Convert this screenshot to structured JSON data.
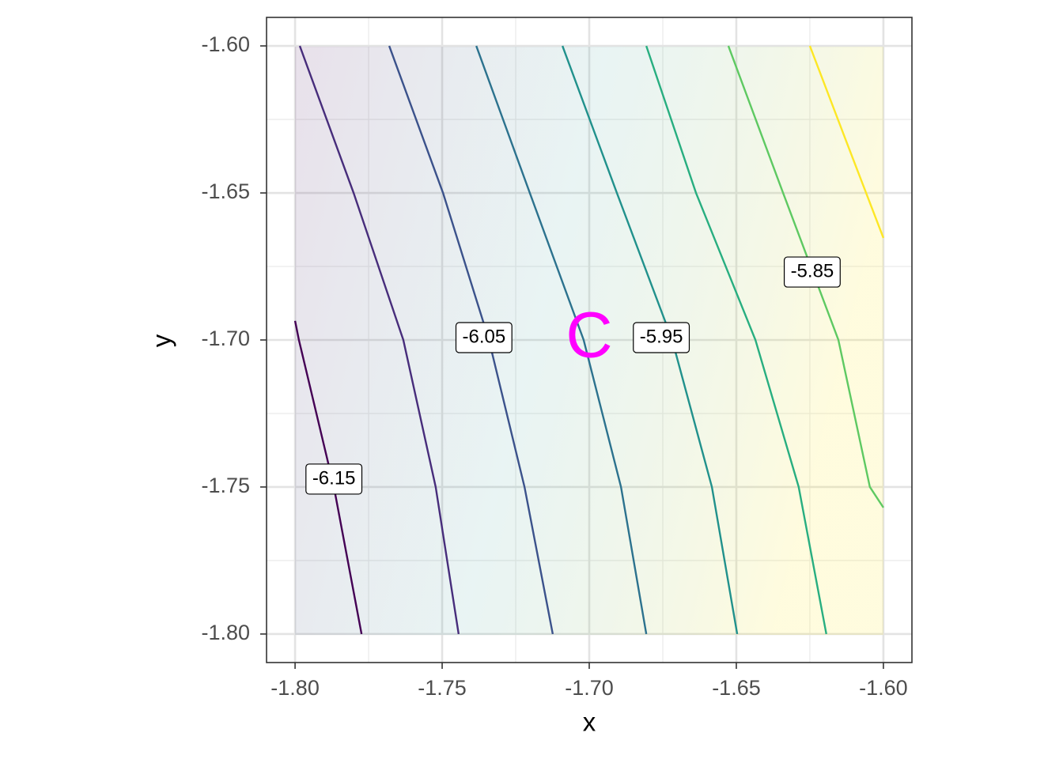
{
  "chart_data": {
    "type": "contour",
    "x_label": "x",
    "y_label": "y",
    "xlim": [
      -1.8097,
      -1.5903
    ],
    "ylim": [
      -1.8097,
      -1.5903
    ],
    "xticks": [
      {
        "value": -1.8,
        "label": "-1.80"
      },
      {
        "value": -1.75,
        "label": "-1.75"
      },
      {
        "value": -1.7,
        "label": "-1.70"
      },
      {
        "value": -1.65,
        "label": "-1.65"
      },
      {
        "value": -1.6,
        "label": "-1.60"
      }
    ],
    "yticks": [
      {
        "value": -1.8,
        "label": "-1.80"
      },
      {
        "value": -1.75,
        "label": "-1.75"
      },
      {
        "value": -1.7,
        "label": "-1.70"
      },
      {
        "value": -1.65,
        "label": "-1.65"
      },
      {
        "value": -1.6,
        "label": "-1.60"
      }
    ],
    "x_minor_ticks": [
      -1.775,
      -1.725,
      -1.675,
      -1.625
    ],
    "y_minor_ticks": [
      -1.775,
      -1.725,
      -1.675,
      -1.625
    ],
    "grid": true,
    "series": [
      {
        "color": "#440154",
        "x": [
          -1.8,
          -1.7987,
          -1.7868,
          -1.7774
        ],
        "y": [
          -1.6935,
          -1.7,
          -1.75,
          -1.8
        ]
      },
      {
        "color": "#472d7b",
        "x": [
          -1.7984,
          -1.7801,
          -1.7632,
          -1.7522,
          -1.7444
        ],
        "y": [
          -1.6,
          -1.65,
          -1.7,
          -1.75,
          -1.8
        ]
      },
      {
        "color": "#3b528b",
        "x": [
          -1.768,
          -1.7497,
          -1.7341,
          -1.722,
          -1.7124
        ],
        "y": [
          -1.6,
          -1.65,
          -1.7,
          -1.75,
          -1.8
        ]
      },
      {
        "color": "#2c728e",
        "x": [
          -1.7384,
          -1.7202,
          -1.7019,
          -1.6892,
          -1.6806
        ],
        "y": [
          -1.6,
          -1.65,
          -1.7,
          -1.75,
          -1.8
        ]
      },
      {
        "color": "#21918c",
        "x": [
          -1.7091,
          -1.6906,
          -1.6718,
          -1.6583,
          -1.6497
        ],
        "y": [
          -1.6,
          -1.65,
          -1.7,
          -1.75,
          -1.8
        ]
      },
      {
        "color": "#28ae80",
        "x": [
          -1.6806,
          -1.6637,
          -1.6435,
          -1.6288,
          -1.6194
        ],
        "y": [
          -1.6,
          -1.65,
          -1.7,
          -1.75,
          -1.8
        ]
      },
      {
        "color": "#5ec962",
        "x": [
          -1.6527,
          -1.6341,
          -1.6153,
          -1.6046,
          -1.6
        ],
        "y": [
          -1.6,
          -1.65,
          -1.7,
          -1.75,
          -1.757
        ]
      },
      {
        "color": "#fde725",
        "x": [
          -1.625,
          -1.6126,
          -1.6
        ],
        "y": [
          -1.6,
          -1.6325,
          -1.6653
        ]
      }
    ],
    "labels": [
      {
        "text": "-6.15",
        "x": -1.7868,
        "y": -1.7473
      },
      {
        "text": "-6.05",
        "x": -1.7358,
        "y": -1.6992
      },
      {
        "text": "-5.95",
        "x": -1.6755,
        "y": -1.6992
      },
      {
        "text": "-5.85",
        "x": -1.6242,
        "y": -1.6769
      }
    ],
    "marker": {
      "text": "C",
      "x": -1.7,
      "y": -1.7,
      "color": "#ff00ff"
    }
  }
}
